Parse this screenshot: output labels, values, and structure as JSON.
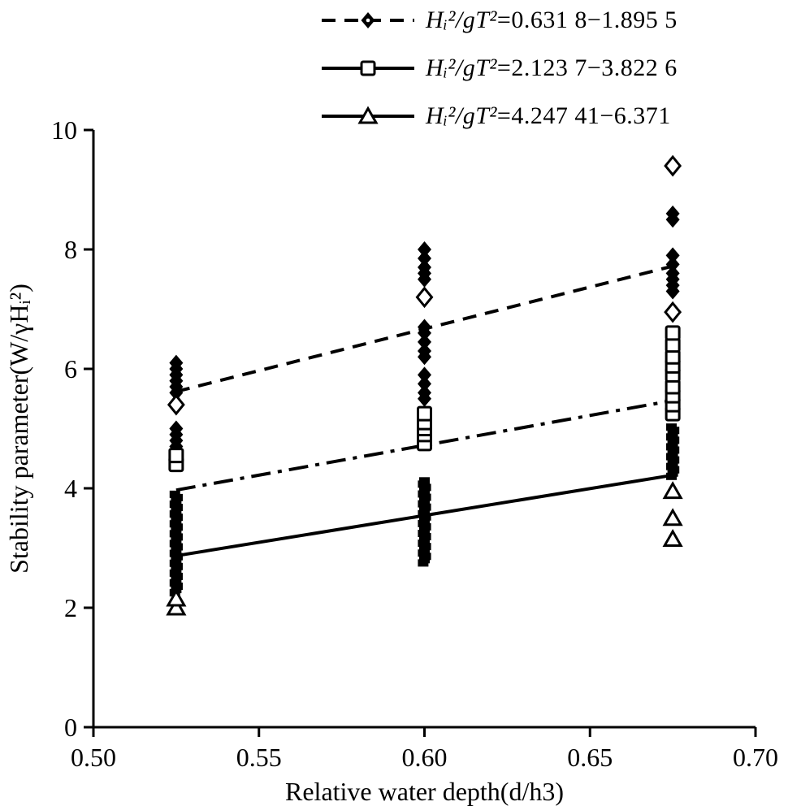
{
  "page": {
    "background": "#ffffff",
    "ink": "#000000"
  },
  "chart_data": {
    "type": "scatter",
    "title": "",
    "xlabel": "Relative water depth(d/h3)",
    "ylabel": "Stability parameter(W/γHᵢ²)",
    "xlim": [
      0.5,
      0.7
    ],
    "ylim": [
      0,
      10
    ],
    "grid": false,
    "legend_position": "top",
    "xticks": [
      {
        "v": 0.5,
        "label": "0.50"
      },
      {
        "v": 0.55,
        "label": "0.55"
      },
      {
        "v": 0.6,
        "label": "0.60"
      },
      {
        "v": 0.65,
        "label": "0.65"
      },
      {
        "v": 0.7,
        "label": "0.70"
      }
    ],
    "yticks": [
      {
        "v": 0,
        "label": "0"
      },
      {
        "v": 2,
        "label": "2"
      },
      {
        "v": 4,
        "label": "4"
      },
      {
        "v": 6,
        "label": "6"
      },
      {
        "v": 8,
        "label": "8"
      },
      {
        "v": 10,
        "label": "10"
      }
    ],
    "series": [
      {
        "legend": {
          "formula": "Hᵢ²/gT²",
          "range": "=0.631 8−1.895 5"
        },
        "marker": "diamond-filled",
        "line_style": "dashed",
        "legend_line": "dashed",
        "trendline": {
          "x1": 0.525,
          "y1": 5.62,
          "x2": 0.675,
          "y2": 7.72
        },
        "points": [
          [
            0.525,
            4.7
          ],
          [
            0.525,
            4.8
          ],
          [
            0.525,
            4.9
          ],
          [
            0.525,
            5.0
          ],
          [
            0.525,
            5.6
          ],
          [
            0.525,
            5.7
          ],
          [
            0.525,
            5.8
          ],
          [
            0.525,
            5.9
          ],
          [
            0.525,
            6.0
          ],
          [
            0.525,
            6.1
          ],
          [
            0.6,
            5.5
          ],
          [
            0.6,
            5.6
          ],
          [
            0.6,
            5.75
          ],
          [
            0.6,
            5.9
          ],
          [
            0.6,
            6.2
          ],
          [
            0.6,
            6.3
          ],
          [
            0.6,
            6.45
          ],
          [
            0.6,
            6.6
          ],
          [
            0.6,
            6.7
          ],
          [
            0.6,
            7.5
          ],
          [
            0.6,
            7.6
          ],
          [
            0.6,
            7.7
          ],
          [
            0.6,
            7.85
          ],
          [
            0.6,
            8.0
          ],
          [
            0.675,
            7.3
          ],
          [
            0.675,
            7.4
          ],
          [
            0.675,
            7.5
          ],
          [
            0.675,
            7.6
          ],
          [
            0.675,
            7.75
          ],
          [
            0.675,
            7.9
          ],
          [
            0.675,
            8.5
          ],
          [
            0.675,
            8.6
          ]
        ],
        "open_points": [
          [
            0.525,
            5.4
          ],
          [
            0.6,
            7.2
          ],
          [
            0.675,
            6.95
          ],
          [
            0.675,
            9.4
          ]
        ]
      },
      {
        "legend": {
          "formula": "Hᵢ²/gT²",
          "range": "=2.123 7−3.822 6"
        },
        "marker": "square-open",
        "line_style": "dashdot",
        "legend_line": "solid",
        "trendline": {
          "x1": 0.525,
          "y1": 3.97,
          "x2": 0.675,
          "y2": 5.47
        },
        "points": [
          [
            0.525,
            4.4
          ],
          [
            0.525,
            4.55
          ],
          [
            0.6,
            4.75
          ],
          [
            0.6,
            4.9
          ],
          [
            0.6,
            5.0
          ],
          [
            0.6,
            5.1
          ],
          [
            0.6,
            5.25
          ],
          [
            0.675,
            5.25
          ],
          [
            0.675,
            5.4
          ],
          [
            0.675,
            5.55
          ],
          [
            0.675,
            5.7
          ],
          [
            0.675,
            5.9
          ],
          [
            0.675,
            6.05
          ],
          [
            0.675,
            6.2
          ],
          [
            0.675,
            6.4
          ],
          [
            0.675,
            6.6
          ]
        ],
        "open_points": []
      },
      {
        "legend": {
          "formula": "Hᵢ²/gT²",
          "range": "=4.247 41−6.371"
        },
        "marker": "triangle-open",
        "line_style": "solid",
        "legend_line": "solid",
        "trendline": {
          "x1": 0.525,
          "y1": 2.87,
          "x2": 0.675,
          "y2": 4.22
        },
        "points": [
          [
            0.525,
            2.0
          ],
          [
            0.525,
            2.15
          ],
          [
            0.675,
            3.15
          ],
          [
            0.675,
            3.5
          ],
          [
            0.675,
            3.95
          ]
        ],
        "open_points": []
      }
    ],
    "dense_clusters": [
      {
        "x": 0.525,
        "y_min": 2.25,
        "y_max": 3.9
      },
      {
        "x": 0.6,
        "y_min": 2.75,
        "y_max": 4.15
      },
      {
        "x": 0.675,
        "y_min": 4.2,
        "y_max": 5.05
      }
    ]
  }
}
